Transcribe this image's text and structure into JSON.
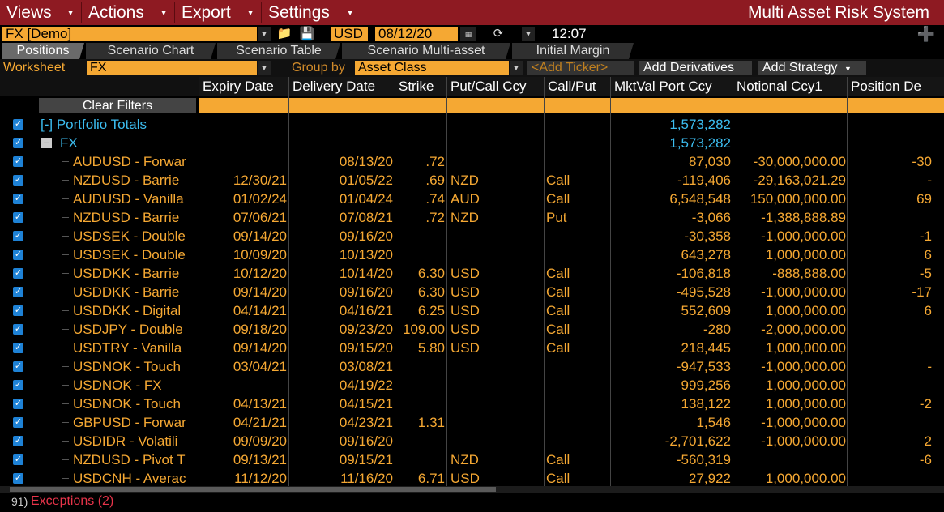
{
  "menubar": {
    "items": [
      {
        "label": "Views"
      },
      {
        "label": "Actions"
      },
      {
        "label": "Export"
      },
      {
        "label": "Settings"
      }
    ],
    "app_title": "Multi Asset Risk System"
  },
  "toolbar": {
    "portfolio": "FX [Demo]",
    "currency": "USD",
    "date": "08/12/20",
    "time": "12:07"
  },
  "tabs": [
    {
      "label": "Positions",
      "active": true
    },
    {
      "label": "Scenario Chart",
      "active": false
    },
    {
      "label": "Scenario Table",
      "active": false
    },
    {
      "label": "Scenario Multi-asset",
      "active": false
    },
    {
      "label": "Initial Margin",
      "active": false
    }
  ],
  "filterbar": {
    "worksheet_label": "Worksheet",
    "worksheet_value": "FX",
    "groupby_label": "Group by",
    "groupby_value": "Asset Class",
    "ticker_placeholder": "<Add Ticker>",
    "add_derivatives": "Add Derivatives",
    "add_strategy": "Add Strategy"
  },
  "grid": {
    "columns": [
      "Expiry Date",
      "Delivery Date",
      "Strike",
      "Put/Call Ccy",
      "Call/Put",
      "MktVal Port Ccy",
      "Notional Ccy1",
      "Position De"
    ],
    "clear_filters": "Clear Filters",
    "portfolio_totals": {
      "label": "[-] Portfolio Totals",
      "mktval": "1,573,282"
    },
    "group": {
      "label": "FX",
      "mktval": "1,573,282"
    },
    "rows": [
      {
        "name": "AUDUSD - Forwar",
        "expiry": "",
        "delivery": "08/13/20",
        "strike": ".72",
        "ccy": "",
        "cp": "",
        "mktval": "87,030",
        "notional": "-30,000,000.00",
        "pos": "-30"
      },
      {
        "name": "NZDUSD - Barrie",
        "expiry": "12/30/21",
        "delivery": "01/05/22",
        "strike": ".69",
        "ccy": "NZD",
        "cp": "Call",
        "mktval": "-119,406",
        "notional": "-29,163,021.29",
        "pos": "-"
      },
      {
        "name": "AUDUSD - Vanilla",
        "expiry": "01/02/24",
        "delivery": "01/04/24",
        "strike": ".74",
        "ccy": "AUD",
        "cp": "Call",
        "mktval": "6,548,548",
        "notional": "150,000,000.00",
        "pos": "69"
      },
      {
        "name": "NZDUSD - Barrie",
        "expiry": "07/06/21",
        "delivery": "07/08/21",
        "strike": ".72",
        "ccy": "NZD",
        "cp": "Put",
        "mktval": "-3,066",
        "notional": "-1,388,888.89",
        "pos": ""
      },
      {
        "name": "USDSEK - Double",
        "expiry": "09/14/20",
        "delivery": "09/16/20",
        "strike": "",
        "ccy": "",
        "cp": "",
        "mktval": "-30,358",
        "notional": "-1,000,000.00",
        "pos": "-1"
      },
      {
        "name": "USDSEK - Double",
        "expiry": "10/09/20",
        "delivery": "10/13/20",
        "strike": "",
        "ccy": "",
        "cp": "",
        "mktval": "643,278",
        "notional": "1,000,000.00",
        "pos": "6"
      },
      {
        "name": "USDDKK - Barrie",
        "expiry": "10/12/20",
        "delivery": "10/14/20",
        "strike": "6.30",
        "ccy": "USD",
        "cp": "Call",
        "mktval": "-106,818",
        "notional": "-888,888.00",
        "pos": "-5"
      },
      {
        "name": "USDDKK - Barrie",
        "expiry": "09/14/20",
        "delivery": "09/16/20",
        "strike": "6.30",
        "ccy": "USD",
        "cp": "Call",
        "mktval": "-495,528",
        "notional": "-1,000,000.00",
        "pos": "-17"
      },
      {
        "name": "USDDKK - Digital",
        "expiry": "04/14/21",
        "delivery": "04/16/21",
        "strike": "6.25",
        "ccy": "USD",
        "cp": "Call",
        "mktval": "552,609",
        "notional": "1,000,000.00",
        "pos": "6"
      },
      {
        "name": "USDJPY - Double",
        "expiry": "09/18/20",
        "delivery": "09/23/20",
        "strike": "109.00",
        "ccy": "USD",
        "cp": "Call",
        "mktval": "-280",
        "notional": "-2,000,000.00",
        "pos": ""
      },
      {
        "name": "USDTRY - Vanilla",
        "expiry": "09/14/20",
        "delivery": "09/15/20",
        "strike": "5.80",
        "ccy": "USD",
        "cp": "Call",
        "mktval": "218,445",
        "notional": "1,000,000.00",
        "pos": ""
      },
      {
        "name": "USDNOK - Touch",
        "expiry": "03/04/21",
        "delivery": "03/08/21",
        "strike": "",
        "ccy": "",
        "cp": "",
        "mktval": "-947,533",
        "notional": "-1,000,000.00",
        "pos": "-"
      },
      {
        "name": "USDNOK - FX",
        "expiry": "",
        "delivery": "04/19/22",
        "strike": "",
        "ccy": "",
        "cp": "",
        "mktval": "999,256",
        "notional": "1,000,000.00",
        "pos": ""
      },
      {
        "name": "USDNOK - Touch",
        "expiry": "04/13/21",
        "delivery": "04/15/21",
        "strike": "",
        "ccy": "",
        "cp": "",
        "mktval": "138,122",
        "notional": "1,000,000.00",
        "pos": "-2"
      },
      {
        "name": "GBPUSD - Forwar",
        "expiry": "04/21/21",
        "delivery": "04/23/21",
        "strike": "1.31",
        "ccy": "",
        "cp": "",
        "mktval": "1,546",
        "notional": "-1,000,000.00",
        "pos": ""
      },
      {
        "name": "USDIDR - Volatili",
        "expiry": "09/09/20",
        "delivery": "09/16/20",
        "strike": "",
        "ccy": "",
        "cp": "",
        "mktval": "-2,701,622",
        "notional": "-1,000,000.00",
        "pos": "2"
      },
      {
        "name": "NZDUSD - Pivot T",
        "expiry": "09/13/21",
        "delivery": "09/15/21",
        "strike": "",
        "ccy": "NZD",
        "cp": "Call",
        "mktval": "-560,319",
        "notional": "",
        "pos": "-6"
      },
      {
        "name": "USDCNH - Averac",
        "expiry": "11/12/20",
        "delivery": "11/16/20",
        "strike": "6.71",
        "ccy": "USD",
        "cp": "Call",
        "mktval": "27,922",
        "notional": "1,000,000.00",
        "pos": ""
      }
    ]
  },
  "status": {
    "number": "91)",
    "text": "Exceptions (2)"
  }
}
